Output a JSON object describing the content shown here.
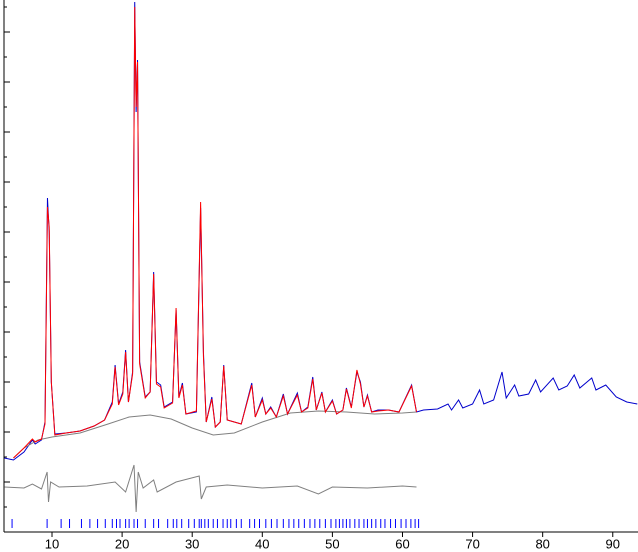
{
  "chart_data": {
    "type": "line",
    "xlim": [
      3.15,
      93.6
    ],
    "ylim": [
      0,
      532
    ],
    "xticks": [
      10,
      20,
      30,
      40,
      50,
      60,
      70,
      80,
      90
    ],
    "yticks": [
      0,
      25,
      50,
      75,
      100,
      125,
      150,
      175,
      200,
      225,
      250,
      275,
      300,
      325,
      350,
      375,
      400,
      425,
      450,
      475,
      500,
      525
    ],
    "series": [
      {
        "color": "#0000cc",
        "x": [
          3.2,
          4.5,
          6,
          7.2,
          7.6,
          8.5,
          9.0,
          9.35,
          9.6,
          9.9,
          10.4,
          12,
          14,
          16,
          17.5,
          18.6,
          19,
          19.5,
          20.1,
          20.5,
          20.9,
          21.5,
          21.8,
          22.0,
          22.2,
          22.5,
          23.3,
          24.0,
          24.5,
          24.9,
          25.5,
          26,
          27.2,
          27.7,
          28.1,
          28.6,
          29.1,
          30.6,
          31.2,
          31.6,
          32.0,
          32.8,
          33.3,
          34.0,
          34.5,
          35.0,
          37.0,
          38.5,
          39.0,
          40.0,
          40.5,
          41.2,
          42.0,
          43.0,
          43.6,
          45.0,
          45.6,
          46.5,
          47.2,
          47.7,
          48.5,
          49.0,
          50.0,
          50.6,
          51.5,
          52.0,
          52.7,
          53.5,
          54.0,
          54.5,
          55.0,
          55.6,
          56.5,
          58.0,
          59.5,
          61.3,
          62,
          63,
          65,
          66.5,
          67,
          68,
          68.6,
          70,
          71,
          71.6,
          73,
          74.2,
          74.8,
          76,
          76.6,
          78,
          79,
          79.7,
          81.5,
          82.3,
          83.5,
          84.5,
          85.3,
          87,
          87.6,
          89,
          90.5,
          92,
          93.5
        ],
        "values": [
          74,
          72,
          80,
          92,
          88,
          92,
          110,
          334,
          300,
          150,
          98,
          99,
          101,
          106,
          112,
          130,
          167,
          128,
          140,
          182,
          130,
          160,
          530,
          420,
          472,
          170,
          135,
          140,
          260,
          150,
          147,
          125,
          130,
          222,
          135,
          149,
          118,
          120,
          324,
          180,
          110,
          135,
          105,
          110,
          167,
          112,
          108,
          149,
          115,
          134,
          118,
          125,
          115,
          138,
          118,
          139,
          120,
          125,
          155,
          122,
          140,
          120,
          132,
          118,
          122,
          144,
          125,
          160,
          150,
          125,
          137,
          120,
          122,
          122,
          120,
          147,
          120,
          122,
          123,
          128,
          122,
          132,
          124,
          128,
          142,
          128,
          132,
          160,
          134,
          147,
          136,
          138,
          152,
          140,
          154,
          142,
          146,
          157,
          144,
          154,
          142,
          147,
          135,
          130,
          128
        ]
      },
      {
        "color": "#ff0000",
        "x": [
          4.5,
          6,
          7.2,
          7.6,
          8.5,
          9.0,
          9.35,
          9.6,
          9.9,
          10.4,
          12,
          14,
          16,
          17.5,
          18.6,
          19,
          19.5,
          20.1,
          20.5,
          20.9,
          21.5,
          21.8,
          22.0,
          22.2,
          22.5,
          23.3,
          24.0,
          24.5,
          24.9,
          25.5,
          26,
          27.2,
          27.7,
          28.1,
          28.6,
          29.1,
          30.6,
          31.2,
          31.6,
          32.0,
          32.8,
          33.3,
          34.0,
          34.5,
          35.0,
          37.0,
          38.5,
          39.0,
          40.0,
          40.5,
          41.2,
          42.0,
          43.0,
          43.6,
          45.0,
          45.6,
          46.5,
          47.2,
          47.7,
          48.5,
          49.0,
          50.0,
          50.6,
          51.5,
          52.0,
          52.7,
          53.5,
          54.0,
          54.5,
          55.0,
          55.6,
          56.5,
          58.0,
          59.5,
          61.3,
          62
        ],
        "values": [
          74,
          84,
          93,
          90,
          93,
          108,
          325,
          305,
          150,
          97,
          99,
          101,
          106,
          112,
          128,
          165,
          127,
          138,
          180,
          130,
          158,
          525,
          425,
          470,
          168,
          134,
          140,
          258,
          148,
          145,
          124,
          129,
          224,
          134,
          147,
          118,
          121,
          330,
          176,
          110,
          133,
          105,
          110,
          166,
          112,
          108,
          147,
          115,
          132,
          118,
          124,
          115,
          136,
          118,
          137,
          120,
          124,
          153,
          122,
          139,
          120,
          131,
          118,
          122,
          143,
          124,
          162,
          148,
          125,
          136,
          120,
          121,
          122,
          120,
          146,
          120
        ]
      },
      {
        "color": "#808080",
        "x": [
          4.5,
          6,
          8,
          10,
          14,
          18,
          21,
          24,
          27,
          30,
          33,
          36,
          40,
          44,
          48,
          52,
          56,
          60,
          62
        ],
        "values": [
          74,
          84,
          92,
          95,
          99,
          108,
          115,
          117,
          113,
          104,
          97,
          99,
          110,
          119,
          121,
          120,
          118,
          119,
          120
        ]
      },
      {
        "color": "#808080",
        "x": [
          3.2,
          6,
          7.2,
          8.5,
          9.3,
          9.5,
          9.8,
          11,
          15,
          19,
          20.5,
          21.7,
          22.0,
          22.3,
          23,
          24.5,
          25,
          27.7,
          31,
          31.3,
          32,
          35,
          40,
          45,
          48,
          50,
          55,
          60,
          62
        ],
        "values": [
          45,
          44,
          48,
          43,
          60,
          30,
          50,
          45,
          46,
          50,
          40,
          67,
          20,
          60,
          44,
          52,
          40,
          50,
          56,
          33,
          45,
          47,
          44,
          46,
          38,
          45,
          44,
          46,
          45
        ]
      }
    ],
    "reflection_color": "#0000ff",
    "reflection_positions": [
      4.3,
      9.3,
      11.3,
      12.5,
      14.2,
      15.4,
      16.5,
      17.6,
      18.6,
      19.2,
      19.7,
      20.5,
      21.0,
      21.7,
      22.2,
      23.3,
      24.5,
      25.2,
      26.5,
      27.3,
      27.8,
      28.5,
      29.5,
      30.3,
      31.0,
      31.3,
      31.8,
      32.3,
      33.0,
      33.6,
      34.4,
      35.0,
      35.5,
      36.3,
      37.0,
      38.2,
      38.9,
      39.6,
      40.5,
      41.3,
      42.1,
      43.0,
      43.8,
      44.5,
      45.2,
      46.0,
      46.8,
      47.5,
      48.2,
      49.0,
      49.8,
      50.5,
      51.0,
      51.5,
      52.0,
      52.5,
      53.2,
      53.8,
      54.5,
      55.0,
      55.6,
      56.2,
      56.9,
      57.5,
      58.3,
      59.0,
      59.8,
      60.5,
      61.2,
      61.8,
      62.3
    ]
  }
}
